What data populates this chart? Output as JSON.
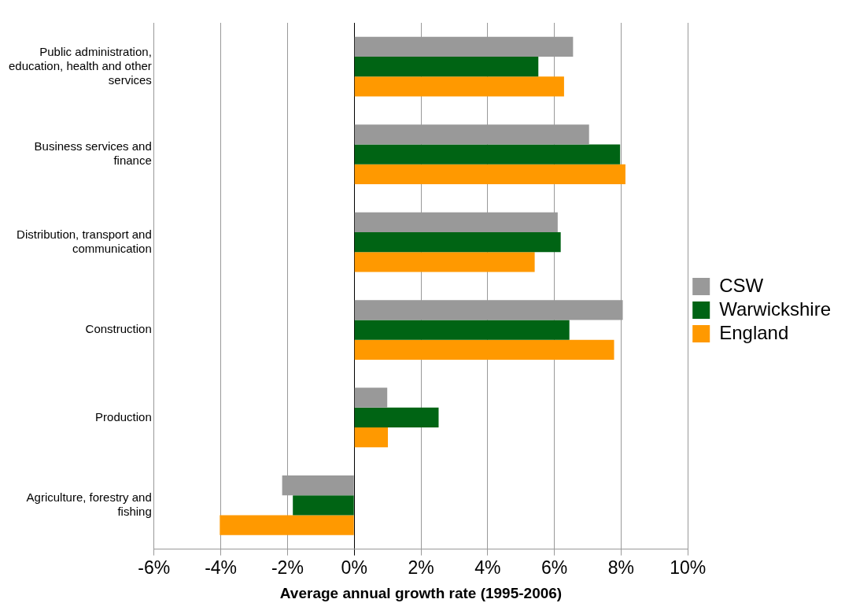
{
  "chart_data": {
    "type": "bar",
    "orientation": "horizontal",
    "xlabel": "Average annual growth rate (1995-2006)",
    "categories": [
      "Public administration, education, health and other services",
      "Business services and finance",
      "Distribution, transport and communication",
      "Construction",
      "Production",
      "Agriculture, forestry and fishing"
    ],
    "series": [
      {
        "name": "CSW",
        "color": "#999999",
        "values": [
          6.56,
          7.04,
          6.1,
          8.05,
          0.99,
          -2.16
        ]
      },
      {
        "name": "Warwickshire",
        "color": "#006414",
        "values": [
          5.52,
          7.97,
          6.19,
          6.45,
          2.53,
          -1.84
        ]
      },
      {
        "name": "England",
        "color": "#ff9900",
        "values": [
          6.29,
          8.13,
          5.41,
          7.79,
          1.01,
          -4.03
        ]
      }
    ],
    "xlim": [
      -6,
      10
    ],
    "xticks": [
      {
        "value": -6,
        "label": "-6%"
      },
      {
        "value": -4,
        "label": "-4%"
      },
      {
        "value": -2,
        "label": "-2%"
      },
      {
        "value": 0,
        "label": "0%"
      },
      {
        "value": 2,
        "label": "2%"
      },
      {
        "value": 4,
        "label": "4%"
      },
      {
        "value": 6,
        "label": "6%"
      },
      {
        "value": 8,
        "label": "8%"
      },
      {
        "value": 10,
        "label": "10%"
      }
    ],
    "grid": "x",
    "legend": "right"
  }
}
